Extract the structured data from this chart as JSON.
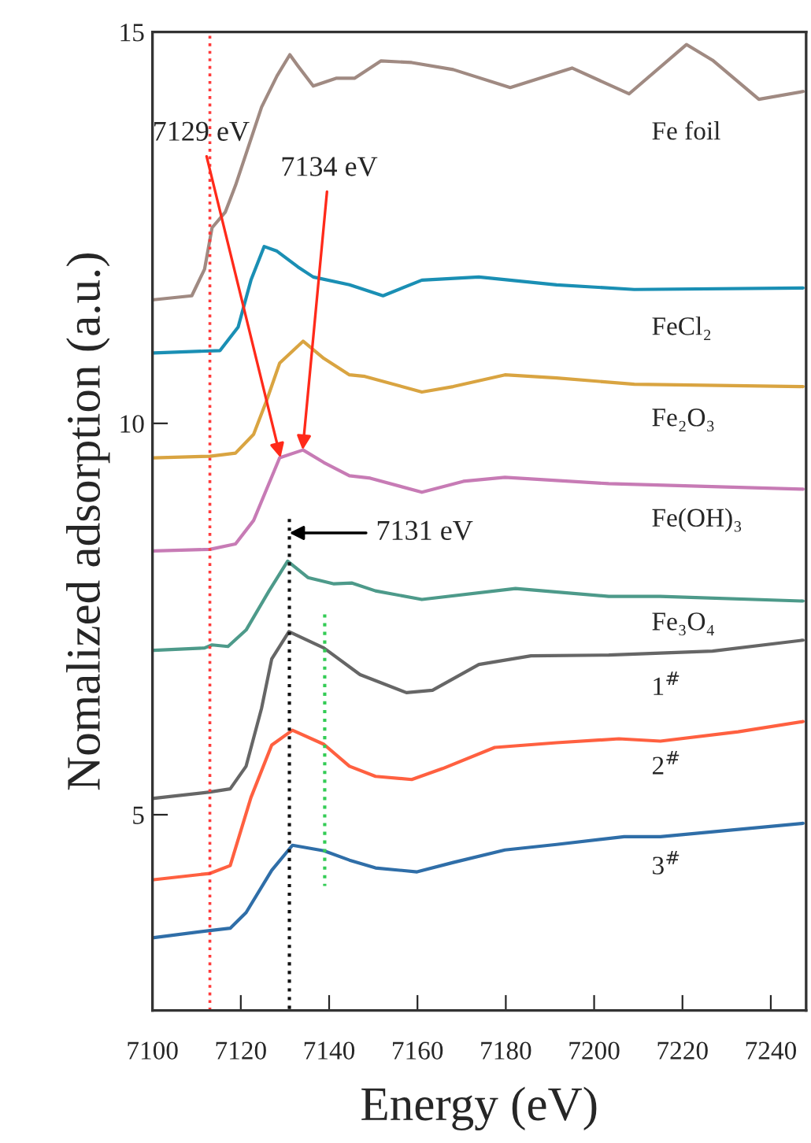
{
  "chart_data": {
    "type": "line",
    "xlabel": "Energy (eV)",
    "ylabel": "Nomalized adsorption (a.u.)",
    "xlim": [
      7100,
      7248
    ],
    "xticks": [
      7100,
      7120,
      7140,
      7160,
      7180,
      7200,
      7220,
      7240
    ],
    "ylim": [
      2.5,
      15
    ],
    "yticks": [
      5,
      10,
      15
    ],
    "line_style": "solid",
    "series": [
      {
        "name": "Fe foil",
        "color": "#a08a82",
        "x": [
          7100.3,
          7108.9,
          7111.8,
          7113.5,
          7116.5,
          7118.8,
          7124.7,
          7128.2,
          7131.1,
          7132.9,
          7136.4,
          7141.7,
          7145.8,
          7151.7,
          7158.7,
          7168.1,
          7181,
          7195,
          7207.9,
          7220.9,
          7226.8,
          7237.3,
          7247.3
        ],
        "values": [
          11.58,
          11.63,
          11.97,
          12.5,
          12.7,
          13.04,
          14.04,
          14.44,
          14.71,
          14.57,
          14.31,
          14.41,
          14.41,
          14.63,
          14.61,
          14.52,
          14.29,
          14.54,
          14.21,
          14.84,
          14.64,
          14.14,
          14.24
        ]
      },
      {
        "name": "FeCl₂",
        "color": "#1a8fb4",
        "x": [
          7100.3,
          7115.3,
          7119.4,
          7122.3,
          7125.3,
          7128.2,
          7132.9,
          7136.4,
          7144.6,
          7152.2,
          7161,
          7173.9,
          7191.5,
          7209.1,
          7247.3
        ],
        "values": [
          10.9,
          10.93,
          11.23,
          11.83,
          12.26,
          12.2,
          12.0,
          11.87,
          11.77,
          11.63,
          11.83,
          11.87,
          11.77,
          11.71,
          11.73
        ]
      },
      {
        "name": "Fe₂O₃",
        "color": "#d9a441",
        "x": [
          7100.3,
          7113,
          7118.8,
          7122.9,
          7125.9,
          7128.8,
          7134.1,
          7138.8,
          7144.6,
          7148.1,
          7161,
          7168.1,
          7179.8,
          7191.5,
          7209.1,
          7247.3
        ],
        "values": [
          9.56,
          9.58,
          9.62,
          9.86,
          10.3,
          10.77,
          11.05,
          10.83,
          10.62,
          10.6,
          10.4,
          10.47,
          10.62,
          10.58,
          10.5,
          10.47
        ]
      },
      {
        "name": "Fe(OH)₃",
        "color": "#c77bb5",
        "x": [
          7100.3,
          7113,
          7118.8,
          7122.9,
          7128.8,
          7134.1,
          7138.8,
          7144.6,
          7149.3,
          7161,
          7170.4,
          7179.8,
          7203.3,
          7247.3
        ],
        "values": [
          8.37,
          8.39,
          8.46,
          8.76,
          9.56,
          9.66,
          9.5,
          9.33,
          9.3,
          9.12,
          9.26,
          9.31,
          9.23,
          9.16
        ]
      },
      {
        "name": "Fe₃O₄",
        "color": "#4d9a8a",
        "x": [
          7100.3,
          7111.8,
          7113.5,
          7117.1,
          7121.2,
          7126.4,
          7130.6,
          7135.2,
          7141.1,
          7145.2,
          7150.5,
          7161,
          7182.2,
          7203.3,
          7215,
          7247.3
        ],
        "values": [
          7.1,
          7.13,
          7.17,
          7.15,
          7.36,
          7.86,
          8.24,
          8.03,
          7.95,
          7.96,
          7.86,
          7.75,
          7.89,
          7.79,
          7.79,
          7.73
        ]
      },
      {
        "name": "1$^{#}$",
        "color": "#666666",
        "x": [
          7100.3,
          7113,
          7117.6,
          7121.2,
          7124.7,
          7127,
          7130.9,
          7138.8,
          7147,
          7157.5,
          7163.4,
          7173.9,
          7185.7,
          7203.3,
          7226.8,
          7247.3
        ],
        "values": [
          5.21,
          5.29,
          5.33,
          5.62,
          6.36,
          6.99,
          7.34,
          7.13,
          6.79,
          6.56,
          6.59,
          6.92,
          7.03,
          7.04,
          7.09,
          7.23
        ]
      },
      {
        "name": "2$^{#}$",
        "color": "#ff6040",
        "x": [
          7100.3,
          7113,
          7117.6,
          7122.3,
          7127,
          7131.7,
          7138.8,
          7144.6,
          7150.5,
          7158.7,
          7165.7,
          7177.5,
          7191.5,
          7205.6,
          7215,
          7232.6,
          7247.3
        ],
        "values": [
          4.17,
          4.25,
          4.35,
          5.22,
          5.89,
          6.08,
          5.9,
          5.62,
          5.49,
          5.45,
          5.59,
          5.86,
          5.92,
          5.97,
          5.94,
          6.06,
          6.19
        ]
      },
      {
        "name": "3$^{#}$",
        "color": "#2f6ea8",
        "x": [
          7100.3,
          7113,
          7117.6,
          7121.2,
          7127,
          7131.7,
          7138.8,
          7144.6,
          7150.5,
          7159.9,
          7168.1,
          7179.8,
          7191.5,
          7206.8,
          7215,
          7247.3
        ],
        "values": [
          3.43,
          3.52,
          3.55,
          3.75,
          4.29,
          4.61,
          4.54,
          4.42,
          4.32,
          4.27,
          4.39,
          4.55,
          4.62,
          4.72,
          4.72,
          4.89
        ]
      },
      {
        "color": "#111111",
        "line_style": "dotted",
        "x": [
          7131,
          7131
        ],
        "values": [
          8.78,
          2.5
        ]
      },
      {
        "color": "#33cc55",
        "line_style": "dotted",
        "x": [
          7139,
          7139
        ],
        "values": [
          7.56,
          4.09
        ]
      }
    ],
    "ref_lines": [
      {
        "axis": "x",
        "value": 7113,
        "color": "#ff3b3b",
        "line_style": "dotted"
      }
    ],
    "annotations": [
      {
        "text": "7129 eV",
        "x": 7129,
        "y": 9.56
      },
      {
        "text": "7134 eV",
        "x": 7134,
        "y": 9.66
      },
      {
        "text": "7131 eV",
        "x": 7131,
        "y": 8.6
      }
    ]
  }
}
